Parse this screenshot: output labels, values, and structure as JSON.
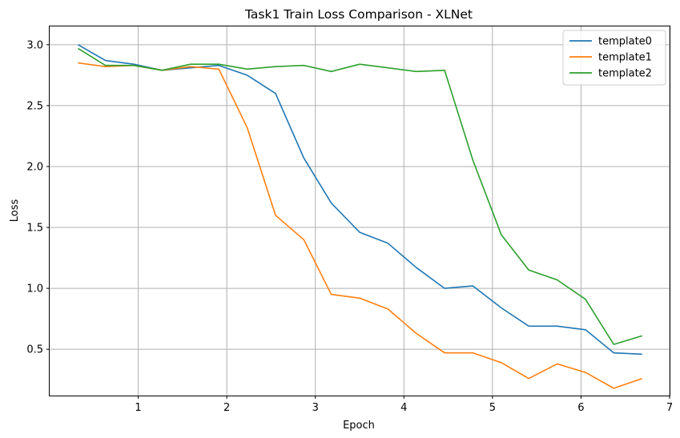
{
  "chart_data": {
    "type": "line",
    "title": "Task1 Train Loss Comparison - XLNet",
    "xlabel": "Epoch",
    "ylabel": "Loss",
    "xlim": [
      0.0,
      7.0
    ],
    "ylim": [
      0.12,
      3.15
    ],
    "xticks": [
      1,
      2,
      3,
      4,
      5,
      6,
      7
    ],
    "yticks": [
      0.5,
      1.0,
      1.5,
      2.0,
      2.5,
      3.0
    ],
    "xtick_labels": [
      "1",
      "2",
      "3",
      "4",
      "5",
      "6",
      "7"
    ],
    "ytick_labels": [
      "0.5",
      "1.0",
      "1.5",
      "2.0",
      "2.5",
      "3.0"
    ],
    "grid": true,
    "legend_position": "top-right",
    "x": [
      0.32,
      0.63,
      0.95,
      1.27,
      1.59,
      1.91,
      2.23,
      2.55,
      2.87,
      3.18,
      3.5,
      3.82,
      4.14,
      4.46,
      4.78,
      5.1,
      5.41,
      5.73,
      6.05,
      6.37,
      6.69
    ],
    "series": [
      {
        "name": "template0",
        "color": "#1f77b4",
        "values": [
          3.0,
          2.87,
          2.84,
          2.79,
          2.81,
          2.83,
          2.75,
          2.6,
          2.07,
          1.7,
          1.46,
          1.37,
          1.17,
          1.0,
          1.02,
          0.84,
          0.69,
          0.69,
          0.66,
          0.47,
          0.46
        ]
      },
      {
        "name": "template1",
        "color": "#ff7f0e",
        "values": [
          2.85,
          2.82,
          2.83,
          2.79,
          2.82,
          2.8,
          2.32,
          1.6,
          1.4,
          0.95,
          0.92,
          0.83,
          0.63,
          0.47,
          0.47,
          0.39,
          0.26,
          0.38,
          0.31,
          0.18,
          0.26
        ]
      },
      {
        "name": "template2",
        "color": "#2ca02c",
        "values": [
          2.97,
          2.83,
          2.83,
          2.79,
          2.84,
          2.84,
          2.8,
          2.82,
          2.83,
          2.78,
          2.84,
          2.81,
          2.78,
          2.79,
          2.05,
          1.44,
          1.15,
          1.07,
          0.91,
          0.54,
          0.61
        ]
      }
    ]
  }
}
